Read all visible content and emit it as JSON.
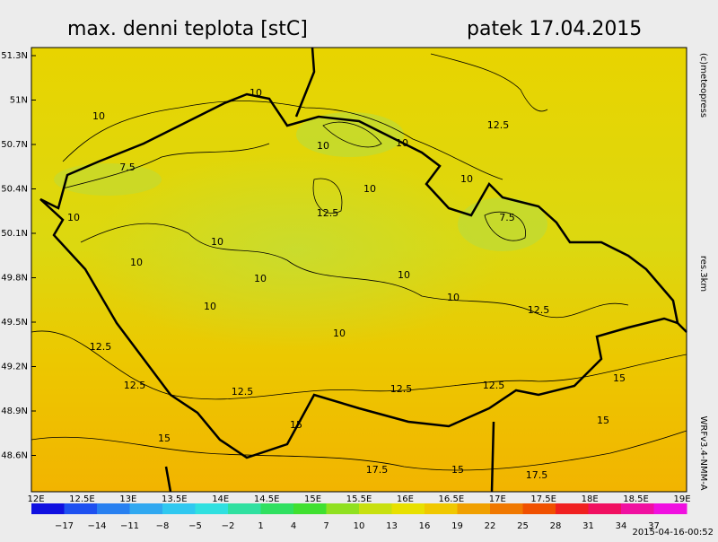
{
  "header": {
    "title": "max. denni teplota [stC]",
    "date": "patek 17.04.2015"
  },
  "lat_labels": [
    "51.3N",
    "51N",
    "50.7N",
    "50.4N",
    "50.1N",
    "49.8N",
    "49.5N",
    "49.2N",
    "48.9N",
    "48.6N"
  ],
  "lon_labels": [
    "12E",
    "12.5E",
    "13E",
    "13.5E",
    "14E",
    "14.5E",
    "15E",
    "15.5E",
    "16E",
    "16.5E",
    "17E",
    "17.5E",
    "18E",
    "18.5E",
    "19E"
  ],
  "colorbar_labels": [
    "−17",
    "−14",
    "−11",
    "−8",
    "−5",
    "−2",
    "1",
    "4",
    "7",
    "10",
    "13",
    "16",
    "19",
    "22",
    "25",
    "28",
    "31",
    "34",
    "37"
  ],
  "contour_labels": [
    "10",
    "10",
    "12.5",
    "7.5",
    "10",
    "10",
    "10",
    "12.5",
    "10",
    "7.5",
    "10",
    "10",
    "10",
    "10",
    "10",
    "10",
    "10",
    "10",
    "12.5",
    "12.5",
    "12.5",
    "12.5",
    "12.5",
    "12.5",
    "15",
    "15",
    "15",
    "17.5",
    "15",
    "17.5",
    "15"
  ],
  "side": {
    "copyright": "(c)meteopress",
    "resolution": "res.3km",
    "model": "WRFv3.4-NMM-A"
  },
  "footer": {
    "timestamp": "2015-04-16-00:52"
  }
}
